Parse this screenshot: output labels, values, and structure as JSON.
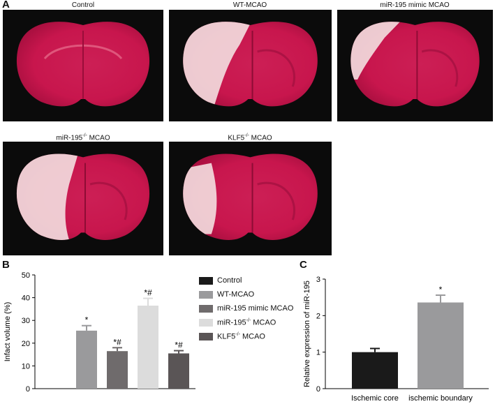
{
  "panel_a": {
    "letter": "A",
    "photos": [
      {
        "title_main": "Control",
        "title_sup": "",
        "title_rest": "",
        "infarct": "none"
      },
      {
        "title_main": "WT-MCAO",
        "title_sup": "",
        "title_rest": "",
        "infarct": "left-medium"
      },
      {
        "title_main": "miR-195 mimic MCAO",
        "title_sup": "",
        "title_rest": "",
        "infarct": "left-top-small"
      },
      {
        "title_main": "miR-195",
        "title_sup": "-/-",
        "title_rest": " MCAO",
        "infarct": "left-large"
      },
      {
        "title_main": "KLF5",
        "title_sup": "-/-",
        "title_rest": " MCAO",
        "infarct": "left-small"
      }
    ]
  },
  "chart_data": [
    {
      "panel": "B",
      "type": "bar",
      "categories": [
        "Control",
        "WT-MCAO",
        "miR-195 mimic MCAO",
        "miR-195-/- MCAO",
        "KLF5-/- MCAO"
      ],
      "values": [
        0,
        25.5,
        16.5,
        36.5,
        15.5
      ],
      "errors": [
        0,
        2.2,
        1.5,
        3.2,
        1.2
      ],
      "annotations": [
        "",
        "*",
        "*#",
        "*#",
        "*#"
      ],
      "colors": [
        "#1a1a1a",
        "#9a9a9c",
        "#6f6b6c",
        "#dcdcdc",
        "#5a5556"
      ],
      "ylabel": "Infact volume (%)",
      "ylim": [
        0,
        50
      ],
      "yticks": [
        0,
        10,
        20,
        30,
        40,
        50
      ],
      "legend": [
        {
          "main": "Control",
          "sup": "",
          "rest": ""
        },
        {
          "main": "WT-MCAO",
          "sup": "",
          "rest": ""
        },
        {
          "main": "miR-195 mimic MCAO",
          "sup": "",
          "rest": ""
        },
        {
          "main": "miR-195",
          "sup": "-/-",
          "rest": " MCAO"
        },
        {
          "main": "KLF5",
          "sup": "-/-",
          "rest": " MCAO"
        }
      ],
      "legend_position": "right"
    },
    {
      "panel": "C",
      "type": "bar",
      "categories": [
        "Ischemic core",
        "ischemic boundary"
      ],
      "values": [
        1.0,
        2.36
      ],
      "errors": [
        0.1,
        0.2
      ],
      "annotations": [
        "",
        "*"
      ],
      "colors": [
        "#1a1a1a",
        "#9a9a9c"
      ],
      "ylabel": "Relative expression of miR-195",
      "ylim": [
        0,
        3
      ],
      "yticks": [
        0,
        1,
        2,
        3
      ]
    }
  ]
}
